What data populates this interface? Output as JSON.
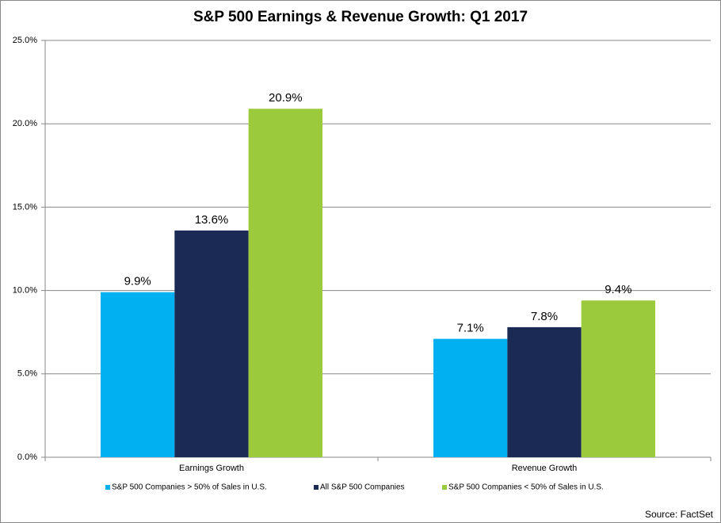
{
  "chart_data": {
    "type": "bar",
    "title": "S&P 500 Earnings & Revenue Growth: Q1 2017",
    "categories": [
      "Earnings Growth",
      "Revenue Growth"
    ],
    "series": [
      {
        "name": "S&P 500 Companies > 50% of Sales in U.S.",
        "color": "#00b0f0",
        "values": [
          9.9,
          7.1
        ],
        "value_labels": [
          "9.9%",
          "7.1%"
        ]
      },
      {
        "name": "All S&P 500 Companies",
        "color": "#1b2a55",
        "values": [
          13.6,
          7.8
        ],
        "value_labels": [
          "13.6%",
          "7.8%"
        ]
      },
      {
        "name": "S&P 500 Companies < 50% of Sales in U.S.",
        "color": "#9bcb3c",
        "values": [
          20.9,
          9.4
        ],
        "value_labels": [
          "20.9%",
          "9.4%"
        ]
      }
    ],
    "ylim": [
      0,
      25
    ],
    "yticks": [
      {
        "value": 0,
        "label": "0.0%"
      },
      {
        "value": 5,
        "label": "5.0%"
      },
      {
        "value": 10,
        "label": "10.0%"
      },
      {
        "value": 15,
        "label": "15.0%"
      },
      {
        "value": 20,
        "label": "20.0%"
      },
      {
        "value": 25,
        "label": "25.0%"
      }
    ],
    "grid": true,
    "legend": "bottom",
    "source": "Source: FactSet"
  }
}
